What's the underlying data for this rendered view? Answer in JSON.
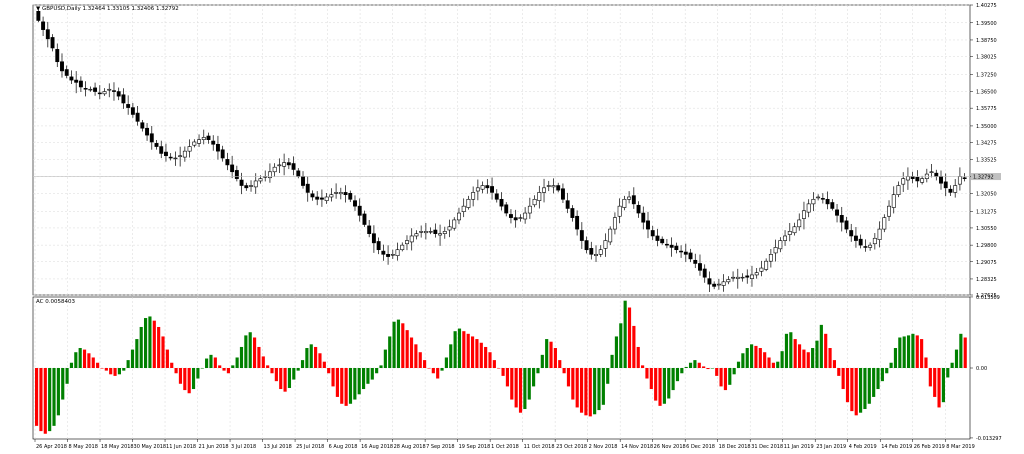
{
  "chart_data": [
    {
      "type": "candlestick",
      "symbol_label": "GBPUSD,Daily",
      "quote_label": "1.32464 1.33105 1.32406 1.32792",
      "current_price": 1.32792,
      "ylim": [
        1.27625,
        1.40275
      ],
      "y_ticks": [
        "1.40275",
        "1.39500",
        "1.38750",
        "1.38025",
        "1.37250",
        "1.36500",
        "1.35775",
        "1.35000",
        "1.34275",
        "1.33525",
        "1.32792",
        "1.32050",
        "1.31275",
        "1.30550",
        "1.29800",
        "1.29075",
        "1.28325",
        "1.27625"
      ],
      "close_series": [
        1.396,
        1.392,
        1.388,
        1.384,
        1.378,
        1.374,
        1.372,
        1.37,
        1.369,
        1.367,
        1.366,
        1.366,
        1.365,
        1.364,
        1.365,
        1.366,
        1.365,
        1.363,
        1.36,
        1.358,
        1.355,
        1.352,
        1.349,
        1.346,
        1.343,
        1.341,
        1.338,
        1.337,
        1.336,
        1.336,
        1.337,
        1.339,
        1.341,
        1.343,
        1.344,
        1.345,
        1.344,
        1.342,
        1.339,
        1.336,
        1.333,
        1.33,
        1.327,
        1.324,
        1.323,
        1.324,
        1.326,
        1.327,
        1.328,
        1.33,
        1.332,
        1.333,
        1.334,
        1.333,
        1.331,
        1.328,
        1.324,
        1.321,
        1.319,
        1.318,
        1.318,
        1.319,
        1.32,
        1.321,
        1.321,
        1.32,
        1.318,
        1.315,
        1.311,
        1.307,
        1.303,
        1.299,
        1.296,
        1.294,
        1.293,
        1.294,
        1.296,
        1.298,
        1.3,
        1.302,
        1.303,
        1.304,
        1.304,
        1.304,
        1.303,
        1.303,
        1.304,
        1.306,
        1.309,
        1.312,
        1.315,
        1.318,
        1.321,
        1.323,
        1.324,
        1.323,
        1.321,
        1.318,
        1.315,
        1.312,
        1.31,
        1.309,
        1.31,
        1.312,
        1.315,
        1.318,
        1.321,
        1.323,
        1.324,
        1.324,
        1.322,
        1.318,
        1.314,
        1.31,
        1.305,
        1.3,
        1.296,
        1.294,
        1.294,
        1.296,
        1.3,
        1.305,
        1.31,
        1.315,
        1.318,
        1.319,
        1.316,
        1.312,
        1.308,
        1.305,
        1.302,
        1.3,
        1.299,
        1.298,
        1.297,
        1.296,
        1.295,
        1.294,
        1.292,
        1.29,
        1.287,
        1.284,
        1.281,
        1.28,
        1.281,
        1.282,
        1.283,
        1.284,
        1.284,
        1.284,
        1.284,
        1.285,
        1.286,
        1.288,
        1.291,
        1.294,
        1.297,
        1.3,
        1.302,
        1.304,
        1.306,
        1.309,
        1.313,
        1.316,
        1.318,
        1.319,
        1.318,
        1.316,
        1.314,
        1.311,
        1.308,
        1.305,
        1.302,
        1.3,
        1.298,
        1.297,
        1.298,
        1.301,
        1.305,
        1.31,
        1.315,
        1.32,
        1.324,
        1.327,
        1.328,
        1.327,
        1.326,
        1.327,
        1.329,
        1.33,
        1.328,
        1.325,
        1.323,
        1.321,
        1.324,
        1.328,
        1.327
      ],
      "x_tick_labels": [
        "26 Apr 2018",
        "8 May 2018",
        "18 May 2018",
        "30 May 2018",
        "11 Jun 2018",
        "21 Jun 2018",
        "3 Jul 2018",
        "13 Jul 2018",
        "25 Jul 2018",
        "6 Aug 2018",
        "16 Aug 2018",
        "28 Aug 2018",
        "7 Sep 2018",
        "19 Sep 2018",
        "1 Oct 2018",
        "11 Oct 2018",
        "23 Oct 2018",
        "2 Nov 2018",
        "14 Nov 2018",
        "26 Nov 2018",
        "6 Dec 2018",
        "18 Dec 2018",
        "31 Dec 2018",
        "11 Jan 2019",
        "23 Jan 2019",
        "4 Feb 2019",
        "14 Feb 2019",
        "26 Feb 2019",
        "8 Mar 2019"
      ]
    },
    {
      "type": "bar",
      "indicator_label": "AC 0.0058403",
      "ylim": [
        -0.0135,
        0.0135
      ],
      "y_ticks": [
        "0.013509",
        "0.00",
        "-0.013297"
      ],
      "up_color": "#008000",
      "down_color": "#ff0000",
      "values": [
        -0.011,
        -0.012,
        -0.0125,
        -0.012,
        -0.011,
        -0.009,
        -0.006,
        -0.003,
        0.001,
        0.003,
        0.0038,
        0.0035,
        0.0028,
        0.002,
        0.001,
        0.0,
        -0.0005,
        -0.0012,
        -0.0015,
        -0.0012,
        -0.0005,
        0.0015,
        0.0035,
        0.0055,
        0.0078,
        0.0095,
        0.0098,
        0.009,
        0.0078,
        0.006,
        0.0035,
        0.001,
        -0.001,
        -0.003,
        -0.0042,
        -0.0048,
        -0.004,
        -0.002,
        0.0,
        0.0018,
        0.0025,
        0.002,
        0.0005,
        -0.0005,
        -0.001,
        0.0005,
        0.002,
        0.004,
        0.0062,
        0.0068,
        0.0058,
        0.004,
        0.0022,
        0.0005,
        -0.001,
        -0.0025,
        -0.004,
        -0.0045,
        -0.0038,
        -0.0022,
        -0.0005,
        0.0015,
        0.0038,
        0.0045,
        0.004,
        0.0028,
        0.0012,
        -0.001,
        -0.0035,
        -0.0055,
        -0.0068,
        -0.0072,
        -0.0068,
        -0.006,
        -0.005,
        -0.004,
        -0.003,
        -0.0022,
        -0.001,
        0.0005,
        0.0035,
        0.006,
        0.0088,
        0.0092,
        0.0085,
        0.0072,
        0.0058,
        0.0045,
        0.003,
        0.0015,
        0.0,
        -0.001,
        -0.002,
        -0.0005,
        0.002,
        0.0045,
        0.007,
        0.0075,
        0.007,
        0.0065,
        0.006,
        0.0055,
        0.0048,
        0.004,
        0.003,
        0.0015,
        0.0,
        -0.0015,
        -0.0035,
        -0.006,
        -0.0075,
        -0.0085,
        -0.0078,
        -0.006,
        -0.0035,
        -0.001,
        0.0025,
        0.0055,
        0.005,
        0.0038,
        0.0015,
        -0.001,
        -0.0035,
        -0.006,
        -0.0075,
        -0.0085,
        -0.009,
        -0.0092,
        -0.0088,
        -0.008,
        -0.007,
        -0.003,
        0.0025,
        0.006,
        0.0085,
        0.0128,
        0.0115,
        0.008,
        0.004,
        0.0005,
        -0.002,
        -0.004,
        -0.0062,
        -0.0072,
        -0.0068,
        -0.0058,
        -0.0042,
        -0.0025,
        -0.001,
        0.0002,
        0.001,
        0.0015,
        0.001,
        0.0003,
        -0.0002,
        0.0,
        -0.0015,
        -0.0035,
        -0.0042,
        -0.0032,
        -0.0012,
        0.0012,
        0.0028,
        0.0038,
        0.0045,
        0.0042,
        0.0038,
        0.003,
        0.002,
        0.001,
        0.0012,
        0.0032,
        0.0065,
        0.0068,
        0.0055,
        0.0045,
        0.0035,
        0.003,
        0.0038,
        0.0052,
        0.0082,
        0.0065,
        0.0038,
        0.0015,
        -0.0015,
        -0.004,
        -0.0065,
        -0.0082,
        -0.009,
        -0.0085,
        -0.0078,
        -0.0068,
        -0.0055,
        -0.004,
        -0.0025,
        -0.001,
        0.001,
        0.0038,
        0.0058,
        0.006,
        0.0062,
        0.0065,
        0.0062,
        0.0055,
        0.002,
        -0.0035,
        -0.0055,
        -0.0075,
        -0.0065,
        -0.0018,
        0.001,
        0.0035,
        0.0065,
        0.0058
      ]
    }
  ]
}
